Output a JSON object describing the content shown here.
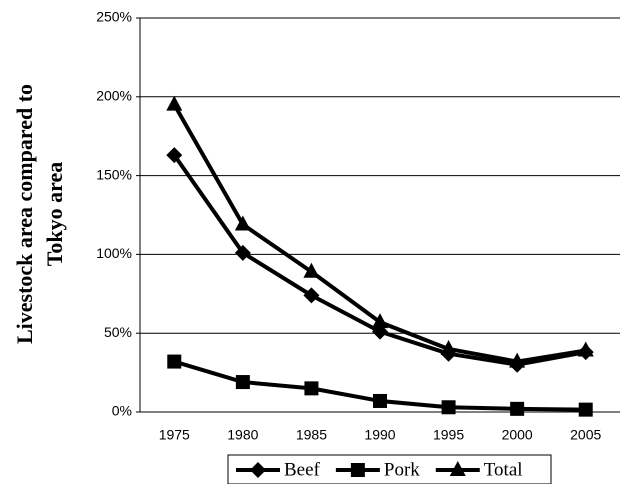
{
  "chart_data": {
    "type": "line",
    "y_label": [
      "Livestock area compared to",
      "Tokyo area"
    ],
    "categories": [
      "1975",
      "1980",
      "1985",
      "1990",
      "1995",
      "2000",
      "2005"
    ],
    "series": [
      {
        "name": "Beef",
        "color": "#000000",
        "marker": "diamond",
        "values": [
          163,
          101,
          74,
          51,
          37,
          30,
          38
        ]
      },
      {
        "name": "Pork",
        "color": "#000000",
        "marker": "square",
        "values": [
          32,
          19,
          15,
          7,
          3,
          2,
          1.5
        ]
      },
      {
        "name": "Total",
        "color": "#000000",
        "marker": "triangle",
        "values": [
          195,
          119,
          89,
          57,
          40,
          32,
          39
        ]
      }
    ],
    "ylim": [
      0,
      250
    ],
    "yticks": [
      {
        "value": 0,
        "label": "0%"
      },
      {
        "value": 50,
        "label": "50%"
      },
      {
        "value": 100,
        "label": "100%"
      },
      {
        "value": 150,
        "label": "150%"
      },
      {
        "value": 200,
        "label": "200%"
      },
      {
        "value": 250,
        "label": "250%"
      }
    ],
    "grid": true,
    "legend": "bottom"
  }
}
